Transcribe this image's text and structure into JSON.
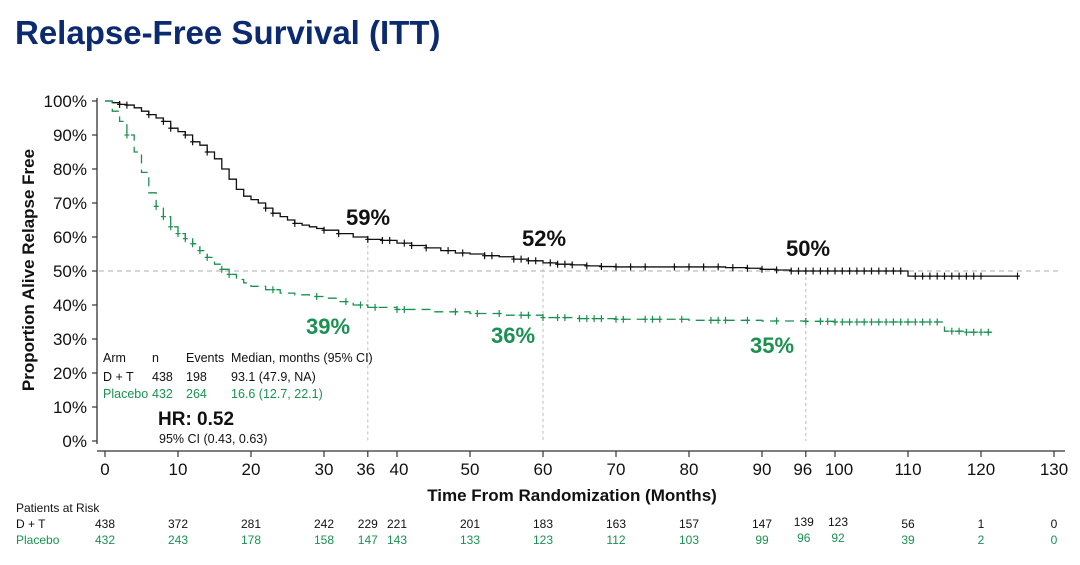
{
  "title": "Relapse-Free Survival (ITT)",
  "colors": {
    "title": "#0b2a6f",
    "dt": "#111111",
    "placebo": "#1a9150",
    "ref": "#bdbdbd"
  },
  "chart_data": {
    "type": "line",
    "subtype": "kaplan-meier",
    "title": "Relapse-Free Survival (ITT)",
    "xlabel": "Time From Randomization (Months)",
    "ylabel": "Proportion Alive Relapse Free",
    "xlim": [
      0,
      130
    ],
    "ylim": [
      0,
      100
    ],
    "xticks": [
      0,
      10,
      20,
      30,
      36,
      40,
      50,
      60,
      70,
      80,
      90,
      96,
      100,
      110,
      120,
      130
    ],
    "xtick_labels": [
      "0",
      "10",
      "20",
      "30",
      "36",
      "40",
      "50",
      "60",
      "70",
      "80",
      "90",
      "96",
      "100",
      "110",
      "120",
      "130"
    ],
    "yticks": [
      0,
      10,
      20,
      30,
      40,
      50,
      60,
      70,
      80,
      90,
      100
    ],
    "ytick_labels": [
      "0%",
      "10%",
      "20%",
      "30%",
      "40%",
      "50%",
      "60%",
      "70%",
      "80%",
      "90%",
      "100%"
    ],
    "reference_lines": {
      "horizontal": [
        50
      ],
      "vertical": [
        36,
        60,
        96
      ]
    },
    "series": [
      {
        "name": "D + T",
        "style": "solid",
        "color": "#111111",
        "points": [
          [
            0,
            100
          ],
          [
            1,
            99.5
          ],
          [
            2,
            99
          ],
          [
            3,
            98.8
          ],
          [
            4,
            98
          ],
          [
            5,
            97
          ],
          [
            6,
            96
          ],
          [
            7,
            95
          ],
          [
            8,
            94
          ],
          [
            9,
            92
          ],
          [
            10,
            91
          ],
          [
            11,
            90
          ],
          [
            12,
            88
          ],
          [
            13,
            87
          ],
          [
            14,
            85
          ],
          [
            15,
            83
          ],
          [
            16,
            80
          ],
          [
            17,
            77
          ],
          [
            18,
            74
          ],
          [
            19,
            72
          ],
          [
            20,
            71
          ],
          [
            21,
            70
          ],
          [
            22,
            68.5
          ],
          [
            23,
            67
          ],
          [
            24,
            66
          ],
          [
            25,
            65
          ],
          [
            26,
            64
          ],
          [
            27,
            63.5
          ],
          [
            28,
            63
          ],
          [
            29,
            62.5
          ],
          [
            30,
            62
          ],
          [
            32,
            61
          ],
          [
            34,
            60
          ],
          [
            36,
            59.3
          ],
          [
            38,
            59
          ],
          [
            40,
            58.2
          ],
          [
            42,
            57.5
          ],
          [
            44,
            56.8
          ],
          [
            46,
            56
          ],
          [
            48,
            55.3
          ],
          [
            50,
            55
          ],
          [
            52,
            54.5
          ],
          [
            54,
            54.2
          ],
          [
            56,
            53.5
          ],
          [
            58,
            53
          ],
          [
            60,
            52.4
          ],
          [
            62,
            52
          ],
          [
            64,
            51.8
          ],
          [
            66,
            51.5
          ],
          [
            68,
            51.3
          ],
          [
            70,
            51.2
          ],
          [
            75,
            51.2
          ],
          [
            80,
            51.2
          ],
          [
            85,
            51
          ],
          [
            88,
            50.8
          ],
          [
            90,
            50.5
          ],
          [
            92,
            50.3
          ],
          [
            94,
            50
          ],
          [
            96,
            50
          ],
          [
            100,
            50
          ],
          [
            105,
            50
          ],
          [
            109,
            50
          ],
          [
            110,
            48.5
          ],
          [
            115,
            48.5
          ],
          [
            120,
            48.5
          ],
          [
            125,
            48.5
          ]
        ],
        "censor_months": [
          2,
          3,
          6,
          8,
          9,
          11,
          12,
          14,
          22,
          23,
          26,
          30,
          32,
          36,
          38,
          39,
          41,
          42,
          44,
          47,
          49,
          52,
          53,
          56,
          57,
          58,
          59,
          61,
          62,
          63,
          64,
          66,
          68,
          70,
          72,
          74,
          78,
          80,
          82,
          84,
          86,
          88,
          90,
          92,
          94,
          95,
          96,
          97,
          98,
          99,
          100,
          101,
          102,
          103,
          104,
          105,
          106,
          107,
          108,
          109,
          111,
          112,
          113,
          114,
          115,
          116,
          117,
          118,
          119,
          120,
          125
        ]
      },
      {
        "name": "Placebo",
        "style": "dashed",
        "color": "#1a9150",
        "points": [
          [
            0,
            100
          ],
          [
            1,
            97
          ],
          [
            2,
            94
          ],
          [
            3,
            90
          ],
          [
            4,
            85
          ],
          [
            5,
            79
          ],
          [
            6,
            73
          ],
          [
            7,
            69
          ],
          [
            8,
            66
          ],
          [
            9,
            63
          ],
          [
            10,
            61
          ],
          [
            11,
            59.5
          ],
          [
            12,
            58
          ],
          [
            13,
            56
          ],
          [
            14,
            54
          ],
          [
            15,
            52
          ],
          [
            16,
            50.5
          ],
          [
            17,
            49
          ],
          [
            18,
            47.5
          ],
          [
            19,
            46.5
          ],
          [
            20,
            45.5
          ],
          [
            22,
            44.5
          ],
          [
            24,
            43.5
          ],
          [
            26,
            43
          ],
          [
            28,
            42.5
          ],
          [
            30,
            42
          ],
          [
            32,
            41
          ],
          [
            34,
            40
          ],
          [
            36,
            39.3
          ],
          [
            40,
            38.7
          ],
          [
            45,
            38
          ],
          [
            50,
            37.5
          ],
          [
            55,
            37
          ],
          [
            60,
            36.3
          ],
          [
            65,
            36
          ],
          [
            70,
            35.8
          ],
          [
            80,
            35.5
          ],
          [
            90,
            35.3
          ],
          [
            96,
            35.2
          ],
          [
            100,
            35
          ],
          [
            110,
            35
          ],
          [
            114,
            35
          ],
          [
            115,
            32.3
          ],
          [
            118,
            32
          ],
          [
            121.5,
            32
          ]
        ],
        "censor_months": [
          3,
          7,
          8,
          9,
          10,
          11,
          12,
          13,
          14,
          16,
          17,
          23,
          29,
          33,
          35,
          37,
          40,
          41,
          48,
          51,
          54,
          57,
          58,
          60,
          62,
          63,
          65,
          66,
          67,
          68,
          70,
          71,
          74,
          75,
          76,
          79,
          83,
          84,
          85,
          88,
          92,
          96,
          98,
          99,
          100,
          101,
          102,
          103,
          104,
          105,
          106,
          107,
          108,
          109,
          110,
          111,
          112,
          113,
          114,
          116,
          117,
          118,
          119,
          120,
          121
        ]
      }
    ],
    "annotations": [
      {
        "text": "59%",
        "series": "D + T",
        "month": 36
      },
      {
        "text": "52%",
        "series": "D + T",
        "month": 60
      },
      {
        "text": "50%",
        "series": "D + T",
        "month": 96
      },
      {
        "text": "39%",
        "series": "Placebo",
        "month": 36
      },
      {
        "text": "36%",
        "series": "Placebo",
        "month": 60
      },
      {
        "text": "35%",
        "series": "Placebo",
        "month": 96
      }
    ],
    "legend": {
      "placement": "bottom-left",
      "header": [
        "Arm",
        "n",
        "Events",
        "Median, months (95% CI)"
      ],
      "rows": [
        {
          "arm": "D + T",
          "n": "438",
          "events": "198",
          "median": "93.1 (47.9, NA)"
        },
        {
          "arm": "Placebo",
          "n": "432",
          "events": "264",
          "median": "16.6 (12.7, 22.1)"
        }
      ]
    },
    "hazard_ratio": {
      "label": "HR: 0.52",
      "ci": "95% CI (0.43, 0.63)"
    },
    "risk_table": {
      "title": "Patients at Risk",
      "months": [
        0,
        10,
        20,
        30,
        36,
        40,
        50,
        60,
        70,
        80,
        90,
        96,
        100,
        110,
        120,
        130
      ],
      "rows": [
        {
          "name": "D + T",
          "values": [
            "438",
            "372",
            "281",
            "242",
            "229",
            "221",
            "201",
            "183",
            "163",
            "157",
            "147",
            "139",
            "123",
            "56",
            "1",
            "0"
          ]
        },
        {
          "name": "Placebo",
          "values": [
            "432",
            "243",
            "178",
            "158",
            "147",
            "143",
            "133",
            "123",
            "112",
            "103",
            "99",
            "96",
            "92",
            "39",
            "2",
            "0"
          ]
        }
      ]
    }
  }
}
